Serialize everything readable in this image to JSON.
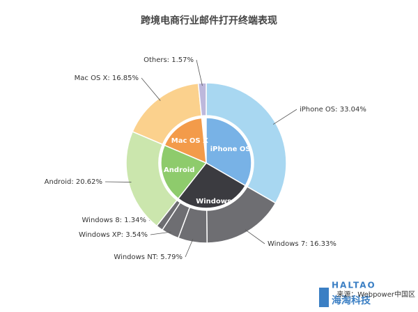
{
  "chart_data": {
    "type": "sunburst",
    "title": "跨境电商行业邮件打开终端表现",
    "values": [
      33.04,
      16.33,
      5.79,
      3.54,
      1.34,
      20.62,
      16.85,
      1.57
    ],
    "value_labels": [
      "iPhone OS: 33.04%",
      "Windows 7: 16.33%",
      "Windows NT: 5.79%",
      "Windows XP: 3.54%",
      "Windows 8: 1.34%",
      "Android: 20.62%",
      "Mac OS X: 16.85%",
      "Others: 1.57%"
    ],
    "colors": [
      "#a8d7f1",
      "#6e6e72",
      "#6e6e72",
      "#6e6e72",
      "#6e6e72",
      "#cbe6ad",
      "#fbd18d",
      "#bdb8dc"
    ],
    "group": [
      "iPhone OS",
      "Windows",
      "Windows",
      "Windows",
      "Windows",
      "Android",
      "Mac OS X",
      null
    ],
    "inner": {
      "categories": [
        "iPhone OS",
        "Windows",
        "Android",
        "Mac OS X"
      ],
      "colors": [
        "#78b2e6",
        "#3b3b40",
        "#8ecb6c",
        "#f39b4a"
      ]
    },
    "source": "来源：Webpower中国区",
    "brand": [
      "HALTAO",
      "海淘科技"
    ]
  }
}
